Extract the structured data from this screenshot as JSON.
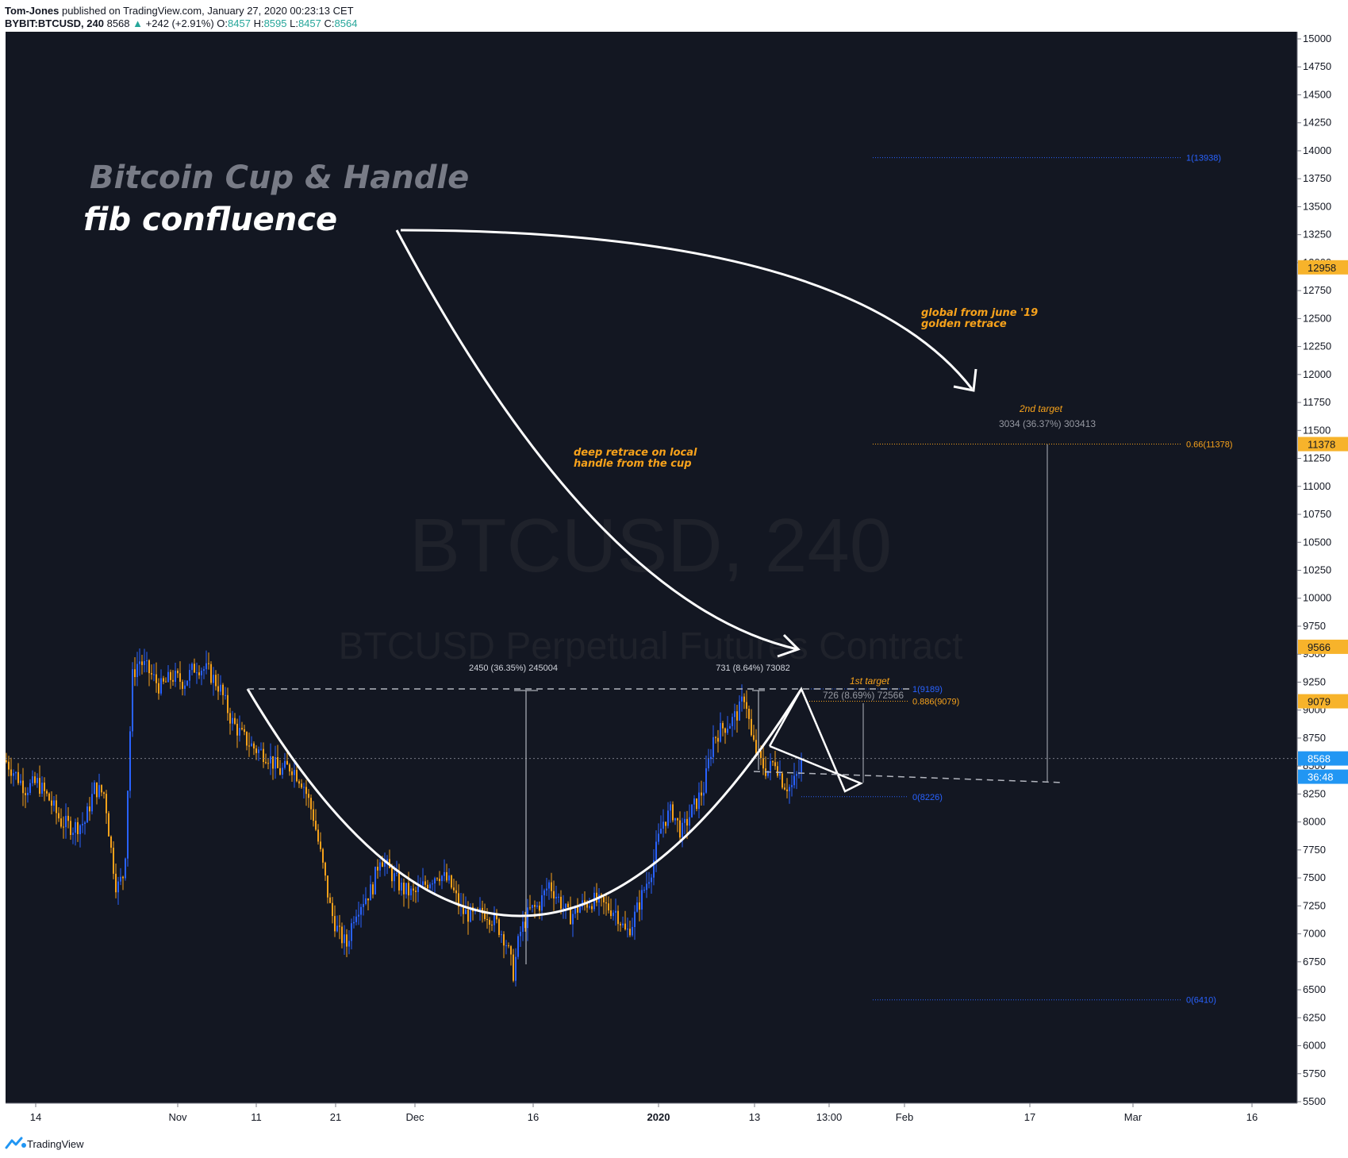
{
  "header": {
    "author": "Tom-Jones",
    "published": "published on TradingView.com, January 27, 2020 00:23:13 CET",
    "symbol": "BYBIT:BTCUSD, 240",
    "last": "8568",
    "change_arrow": "▲",
    "change": "+242 (+2.91%)",
    "o_label": "O:",
    "o_value": "8457",
    "h_label": "H:",
    "h_value": "8595",
    "l_label": "L:",
    "l_value": "8457",
    "c_label": "C:",
    "c_value": "8564"
  },
  "watermark": {
    "title": "BTCUSD, 240",
    "subtitle": "BTCUSD Perpetual Futures Contract"
  },
  "annotations": {
    "title1": "Bitcoin Cup & Handle",
    "title2": "fib confluence",
    "global_note_1": "global from june '19",
    "global_note_2": "golden retrace",
    "deep_note_1": "deep retrace on local",
    "deep_note_2": "handle from the cup",
    "first_target": "1st target",
    "second_target": "2nd target",
    "measure_cup": "2450 (36.35%) 245004",
    "measure_handle": "731 (8.64%) 73082",
    "measure_first": "726 (8.69%) 72566",
    "measure_second": "3034 (36.37%) 303413"
  },
  "fib_levels": [
    {
      "label": "1(13938)",
      "price": 13938,
      "color": "#2962ff"
    },
    {
      "label": "0.66(11378)",
      "price": 11378,
      "color": "#f7a21b"
    },
    {
      "label": "0(6410)",
      "price": 6410,
      "color": "#2962ff"
    },
    {
      "label": "1(9189)",
      "price": 9189,
      "color": "#2962ff"
    },
    {
      "label": "0.886(9079)",
      "price": 9079,
      "color": "#f7a21b"
    },
    {
      "label": "0(8226)",
      "price": 8226,
      "color": "#2962ff"
    }
  ],
  "price_tags": [
    {
      "text": "12958",
      "price": 12958,
      "bg": "#f7b32b",
      "fg": "#131722"
    },
    {
      "text": "11378",
      "price": 11378,
      "bg": "#f7b32b",
      "fg": "#131722"
    },
    {
      "text": "9566",
      "price": 9566,
      "bg": "#f7b32b",
      "fg": "#131722"
    },
    {
      "text": "9079",
      "price": 9079,
      "bg": "#f7b32b",
      "fg": "#131722"
    },
    {
      "text": "8568",
      "price": 8568,
      "bg": "#2196f3",
      "fg": "#ffffff"
    }
  ],
  "countdown": "36:48",
  "chart_data": {
    "type": "candlestick",
    "ylim": [
      5500,
      15000
    ],
    "y_ticks": [
      15000,
      14750,
      14500,
      14250,
      14000,
      13750,
      13500,
      13250,
      13000,
      12750,
      12500,
      12250,
      12000,
      11750,
      11500,
      11250,
      11000,
      10750,
      10500,
      10250,
      10000,
      9750,
      9500,
      9250,
      9000,
      8750,
      8500,
      8250,
      8000,
      7750,
      7500,
      7250,
      7000,
      6750,
      6500,
      6250,
      6000,
      5750,
      5500
    ],
    "x_ticks": [
      "14",
      "Nov",
      "11",
      "21",
      "Dec",
      "16",
      "2020",
      "13",
      "13:00",
      "Feb",
      "17",
      "Mar",
      "16"
    ],
    "price_path": [
      [
        0,
        8550
      ],
      [
        10,
        8450
      ],
      [
        25,
        8300
      ],
      [
        40,
        8350
      ],
      [
        55,
        8200
      ],
      [
        70,
        8000
      ],
      [
        85,
        7950
      ],
      [
        100,
        8000
      ],
      [
        112,
        8300
      ],
      [
        125,
        8250
      ],
      [
        132,
        7800
      ],
      [
        140,
        7400
      ],
      [
        150,
        7550
      ],
      [
        155,
        8500
      ],
      [
        160,
        9300
      ],
      [
        168,
        9450
      ],
      [
        180,
        9350
      ],
      [
        195,
        9200
      ],
      [
        210,
        9300
      ],
      [
        225,
        9250
      ],
      [
        240,
        9400
      ],
      [
        255,
        9350
      ],
      [
        270,
        9200
      ],
      [
        285,
        8900
      ],
      [
        300,
        8750
      ],
      [
        315,
        8650
      ],
      [
        330,
        8600
      ],
      [
        345,
        8450
      ],
      [
        360,
        8500
      ],
      [
        375,
        8350
      ],
      [
        388,
        8050
      ],
      [
        400,
        7600
      ],
      [
        410,
        7200
      ],
      [
        420,
        7000
      ],
      [
        430,
        6900
      ],
      [
        440,
        7200
      ],
      [
        450,
        7300
      ],
      [
        462,
        7400
      ],
      [
        472,
        7700
      ],
      [
        485,
        7550
      ],
      [
        500,
        7400
      ],
      [
        515,
        7350
      ],
      [
        530,
        7450
      ],
      [
        545,
        7550
      ],
      [
        560,
        7450
      ],
      [
        575,
        7200
      ],
      [
        590,
        7150
      ],
      [
        605,
        7200
      ],
      [
        618,
        7100
      ],
      [
        630,
        6950
      ],
      [
        640,
        6650
      ],
      [
        648,
        7000
      ],
      [
        660,
        7200
      ],
      [
        672,
        7250
      ],
      [
        685,
        7450
      ],
      [
        698,
        7300
      ],
      [
        710,
        7150
      ],
      [
        725,
        7250
      ],
      [
        740,
        7300
      ],
      [
        755,
        7250
      ],
      [
        770,
        7200
      ],
      [
        782,
        7000
      ],
      [
        790,
        7100
      ],
      [
        800,
        7300
      ],
      [
        815,
        7600
      ],
      [
        828,
        8000
      ],
      [
        840,
        8100
      ],
      [
        852,
        7900
      ],
      [
        865,
        8100
      ],
      [
        880,
        8300
      ],
      [
        892,
        8750
      ],
      [
        905,
        8850
      ],
      [
        915,
        8900
      ],
      [
        925,
        9000
      ],
      [
        932,
        9150
      ],
      [
        940,
        8750
      ],
      [
        950,
        8550
      ],
      [
        960,
        8450
      ],
      [
        970,
        8550
      ],
      [
        980,
        8350
      ],
      [
        990,
        8300
      ],
      [
        1000,
        8450
      ],
      [
        1005,
        8568
      ]
    ]
  }
}
